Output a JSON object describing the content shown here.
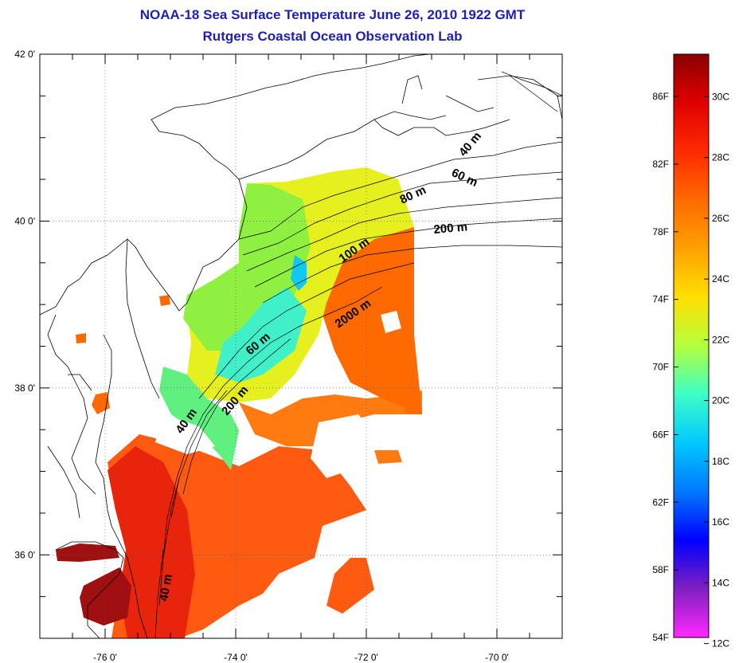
{
  "title": {
    "line1": "NOAA-18 Sea Surface Temperature June 26, 2010 1922 GMT",
    "line2": "Rutgers Coastal Ocean Observation Lab"
  },
  "map": {
    "lat_ticks": [
      {
        "value": 42,
        "label": "42 0'"
      },
      {
        "value": 40,
        "label": "40 0'"
      },
      {
        "value": 38,
        "label": "38 0'"
      },
      {
        "value": 36,
        "label": "36 0'"
      }
    ],
    "lon_ticks": [
      {
        "value": -76,
        "label": "-76 0'"
      },
      {
        "value": -74,
        "label": "-74 0'"
      },
      {
        "value": -72,
        "label": "-72 0'"
      },
      {
        "value": -70,
        "label": "-70 0'"
      }
    ],
    "lat_range": [
      35.0,
      42.0
    ],
    "lon_range": [
      -77.0,
      -69.0
    ],
    "grid": "dotted",
    "isobath_labels": [
      {
        "text": "40 m"
      },
      {
        "text": "60 m"
      },
      {
        "text": "80 m"
      },
      {
        "text": "200 m"
      },
      {
        "text": "100 m"
      },
      {
        "text": "2000 m"
      },
      {
        "text": "60 m"
      },
      {
        "text": "200 m"
      },
      {
        "text": "40 m"
      },
      {
        "text": "40 m"
      }
    ]
  },
  "colorbar": {
    "fahrenheit": [
      "86F",
      "82F",
      "78F",
      "74F",
      "70F",
      "66F",
      "62F",
      "58F",
      "54F"
    ],
    "celsius": [
      "30C",
      "28C",
      "26C",
      "24C",
      "22C",
      "20C",
      "18C",
      "16C",
      "14C",
      "12C"
    ],
    "stops": [
      "#8b0000",
      "#e00000",
      "#ff2a00",
      "#ff6a00",
      "#ffa000",
      "#ffe000",
      "#b4ff3c",
      "#3cffc8",
      "#00c8ff",
      "#0078ff",
      "#0000ff",
      "#8020c0",
      "#ff28ff"
    ]
  }
}
